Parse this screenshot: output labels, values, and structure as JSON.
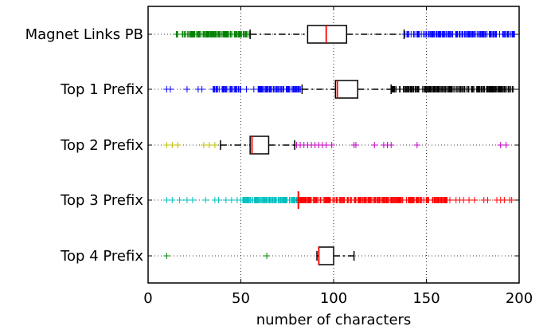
{
  "chart_data": {
    "type": "boxplot",
    "orientation": "horizontal",
    "title": "",
    "xlabel": "number of characters",
    "ylabel": "",
    "xlim": [
      0,
      200
    ],
    "xticks": [
      0,
      50,
      100,
      150,
      200
    ],
    "xtick_labels": [
      "0",
      "50",
      "100",
      "150",
      "200"
    ],
    "grid": "vertical dotted",
    "legend": "none",
    "categories": [
      "Magnet Links PB",
      "Top 1 Prefix",
      "Top 2 Prefix",
      "Top 3 Prefix",
      "Top 4 Prefix"
    ],
    "series": [
      {
        "category": "Magnet Links PB",
        "q1": 86,
        "median": 96,
        "q3": 107,
        "whisker_low": 55,
        "whisker_high": 138,
        "box_style": "rect",
        "whisker_color": "#000000",
        "median_color": "#ff0000",
        "outliers": [
          {
            "range": [
              15,
              55
            ],
            "count": 140,
            "color": "#008000"
          },
          {
            "range": [
              138,
              198
            ],
            "count": 170,
            "color": "#0000ff"
          }
        ]
      },
      {
        "category": "Top 1 Prefix",
        "q1": 101,
        "median": 102,
        "q3": 113,
        "whisker_low": 83,
        "whisker_high": 131,
        "box_style": "rect",
        "whisker_color": "#000000",
        "median_color": "#ff0000",
        "outliers": [
          {
            "values": [
              10,
              12,
              21,
              27,
              29
            ],
            "color": "#0000ff"
          },
          {
            "range": [
              35,
              50
            ],
            "count": 40,
            "color": "#0000ff"
          },
          {
            "values": [
              53,
              57
            ],
            "color": "#0000ff"
          },
          {
            "range": [
              59,
              83
            ],
            "count": 70,
            "color": "#0000ff"
          },
          {
            "range": [
              131,
              197
            ],
            "count": 200,
            "color": "#000000"
          }
        ]
      },
      {
        "category": "Top 2 Prefix",
        "q1": 55,
        "median": 56,
        "q3": 65,
        "whisker_low": 39,
        "whisker_high": 79,
        "box_style": "rect",
        "whisker_color": "#000000",
        "median_color": "#ff0000",
        "outliers": [
          {
            "values": [
              10,
              13,
              16,
              30,
              33,
              36
            ],
            "color": "#bfbf00"
          },
          {
            "values": [
              80,
              82,
              84,
              86,
              88,
              90,
              92,
              94,
              96,
              99,
              111,
              112,
              122,
              127,
              129,
              131,
              145,
              190,
              193
            ],
            "color": "#bf00bf"
          }
        ]
      },
      {
        "category": "Top 3 Prefix",
        "q1": 81,
        "median": 81,
        "q3": 81,
        "whisker_low": 81,
        "whisker_high": 81,
        "box_style": "collapsed",
        "whisker_color": "#ff0000",
        "median_color": "#ff0000",
        "outliers": [
          {
            "values": [
              10,
              13,
              17,
              21,
              24,
              31,
              36,
              38,
              42,
              45,
              48,
              50
            ],
            "color": "#00bfbf"
          },
          {
            "range": [
              51,
              81
            ],
            "count": 140,
            "color": "#00bfbf"
          },
          {
            "range": [
              81,
              163
            ],
            "count": 260,
            "color": "#ff0000"
          },
          {
            "values": [
              166,
              168,
              170,
              173,
              176,
              181,
              183,
              188,
              190,
              192,
              195,
              196
            ],
            "color": "#ff0000"
          }
        ]
      },
      {
        "category": "Top 4 Prefix",
        "q1": 92,
        "median": 92,
        "q3": 100,
        "whisker_low": 91,
        "whisker_high": 111,
        "box_style": "rect",
        "whisker_color": "#000000",
        "median_color": "#ff0000",
        "outliers": [
          {
            "values": [
              10,
              64
            ],
            "color": "#008000"
          }
        ]
      }
    ]
  }
}
